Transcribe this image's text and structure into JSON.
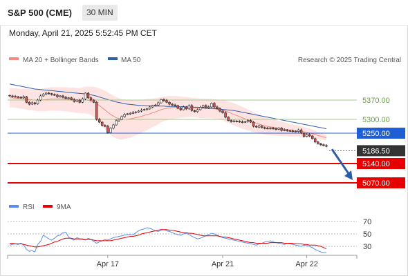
{
  "header": {
    "instrument": "S&P 500 (CME)",
    "timeframe": "30 MIN",
    "timestamp": "Monday, April 21, 2025 5:52:45 PM CET"
  },
  "legend": {
    "ma20_label": "MA 20 + Bollinger Bands",
    "ma50_label": "MA 50",
    "copyright": "Research © 2025 Trading Central",
    "rsi_label": "RSI",
    "rsi_ma_label": "9MA"
  },
  "colors": {
    "ma20": "#f28b82",
    "bollinger_fill": "#fde3e1",
    "ma50": "#2d5ea8",
    "candle_up": "#ffffff",
    "candle_down": "#d9534f",
    "candle_border": "#222222",
    "resistance": "#a6c98a",
    "pivot": "#1f5fd6",
    "support": "#e60000",
    "price_tag": "#333333",
    "arrow": "#2a5da8",
    "rsi": "#5b8def",
    "rsi_ma": "#e60000"
  },
  "chart_data": {
    "type": "candlestick",
    "ylim": [
      5020,
      5470
    ],
    "x_labels": [
      "Apr 17",
      "Apr 21",
      "Apr 22"
    ],
    "levels": [
      {
        "value": 5370.0,
        "label": "5370.00",
        "kind": "resistance"
      },
      {
        "value": 5300.0,
        "label": "5300.00",
        "kind": "resistance"
      },
      {
        "value": 5250.0,
        "label": "5250.00",
        "kind": "pivot"
      },
      {
        "value": 5140.0,
        "label": "5140.00",
        "kind": "support"
      },
      {
        "value": 5070.0,
        "label": "5070.00",
        "kind": "support"
      }
    ],
    "last_price": {
      "value": 5186.5,
      "label": "5186.50"
    },
    "arrow": {
      "from": 5192,
      "to": 5080
    },
    "price_series": [
      5385,
      5383,
      5382,
      5380,
      5378,
      5382,
      5362,
      5355,
      5360,
      5356,
      5370,
      5385,
      5392,
      5395,
      5393,
      5390,
      5388,
      5382,
      5385,
      5380,
      5376,
      5378,
      5372,
      5365,
      5370,
      5362,
      5374,
      5395,
      5378,
      5370,
      5362,
      5300,
      5290,
      5278,
      5275,
      5252,
      5268,
      5280,
      5295,
      5300,
      5310,
      5318,
      5320,
      5322,
      5325,
      5327,
      5330,
      5334,
      5336,
      5338,
      5345,
      5350,
      5352,
      5360,
      5372,
      5368,
      5362,
      5355,
      5352,
      5350,
      5340,
      5335,
      5345,
      5338,
      5350,
      5332,
      5328,
      5335,
      5344,
      5350,
      5342,
      5345,
      5358,
      5345,
      5340,
      5330,
      5324,
      5308,
      5296,
      5292,
      5294,
      5293,
      5291,
      5290,
      5292,
      5296,
      5290,
      5275,
      5272,
      5276,
      5270,
      5268,
      5267,
      5269,
      5266,
      5264,
      5268,
      5260,
      5262,
      5259,
      5258,
      5257,
      5256,
      5262,
      5250,
      5238,
      5245,
      5240,
      5230,
      5218,
      5212,
      5208,
      5205,
      5203
    ],
    "ma20_series": [
      5378,
      5378,
      5377,
      5376,
      5375,
      5374,
      5373,
      5372,
      5371,
      5370,
      5369,
      5370,
      5371,
      5372,
      5373,
      5374,
      5374,
      5374,
      5374,
      5373,
      5373,
      5372,
      5371,
      5370,
      5369,
      5368,
      5369,
      5370,
      5369,
      5367,
      5364,
      5358,
      5350,
      5342,
      5334,
      5326,
      5318,
      5312,
      5306,
      5302,
      5300,
      5300,
      5301,
      5302,
      5304,
      5306,
      5308,
      5311,
      5314,
      5317,
      5320,
      5324,
      5327,
      5331,
      5335,
      5338,
      5340,
      5342,
      5343,
      5344,
      5344,
      5344,
      5344,
      5344,
      5344,
      5343,
      5342,
      5341,
      5340,
      5340,
      5339,
      5339,
      5339,
      5338,
      5337,
      5335,
      5333,
      5330,
      5326,
      5322,
      5318,
      5314,
      5310,
      5306,
      5302,
      5298,
      5294,
      5290,
      5286,
      5283,
      5280,
      5277,
      5275,
      5273,
      5271,
      5269,
      5268,
      5266,
      5264,
      5263,
      5261,
      5260,
      5259,
      5258,
      5257,
      5255,
      5253,
      5251,
      5248,
      5245,
      5242,
      5239,
      5236,
      5233
    ],
    "ma50_series": [
      5428,
      5426,
      5424,
      5422,
      5420,
      5418,
      5416,
      5414,
      5412,
      5410,
      5409,
      5408,
      5407,
      5406,
      5405,
      5404,
      5403,
      5402,
      5401,
      5400,
      5399,
      5398,
      5397,
      5396,
      5395,
      5394,
      5393,
      5392,
      5391,
      5389,
      5387,
      5384,
      5381,
      5378,
      5375,
      5372,
      5369,
      5366,
      5363,
      5361,
      5359,
      5357,
      5355,
      5354,
      5353,
      5352,
      5351,
      5350,
      5350,
      5349,
      5349,
      5349,
      5348,
      5348,
      5348,
      5348,
      5347,
      5347,
      5347,
      5347,
      5346,
      5346,
      5346,
      5345,
      5345,
      5345,
      5344,
      5344,
      5343,
      5343,
      5342,
      5341,
      5340,
      5339,
      5338,
      5337,
      5336,
      5335,
      5334,
      5333,
      5332,
      5330,
      5328,
      5326,
      5324,
      5322,
      5320,
      5318,
      5316,
      5314,
      5312,
      5310,
      5308,
      5306,
      5304,
      5302,
      5300,
      5298,
      5296,
      5294,
      5292,
      5290,
      5288,
      5286,
      5284,
      5282,
      5280,
      5278,
      5276,
      5274,
      5272,
      5270,
      5268,
      5266
    ],
    "bollinger_width": [
      35,
      35,
      35,
      36,
      36,
      37,
      37,
      38,
      38,
      39,
      40,
      40,
      41,
      42,
      42,
      43,
      43,
      43,
      43,
      44,
      44,
      44,
      44,
      45,
      45,
      46,
      47,
      48,
      49,
      51,
      54,
      58,
      62,
      66,
      70,
      72,
      74,
      75,
      75,
      74,
      73,
      72,
      70,
      68,
      66,
      64,
      62,
      60,
      58,
      56,
      54,
      52,
      50,
      48,
      46,
      45,
      44,
      43,
      42,
      41,
      40,
      39,
      38,
      37,
      36,
      35,
      35,
      35,
      35,
      35,
      35,
      35,
      35,
      35,
      35,
      36,
      37,
      38,
      39,
      40,
      40,
      40,
      40,
      40,
      39,
      38,
      37,
      36,
      35,
      34,
      33,
      32,
      31,
      30,
      29,
      28,
      27,
      26,
      25,
      24,
      23,
      22,
      21,
      20,
      19,
      18,
      17,
      16,
      15,
      14,
      13,
      12,
      11,
      10
    ],
    "rsi": {
      "ylim": [
        20,
        80
      ],
      "ticks": [
        70,
        50,
        30
      ],
      "rsi_series": [
        32,
        33,
        34,
        33,
        35,
        32,
        25,
        22,
        23,
        21,
        33,
        38,
        48,
        45,
        42,
        40,
        43,
        47,
        48,
        52,
        53,
        45,
        42,
        40,
        44,
        42,
        41,
        40,
        43,
        41,
        38,
        35,
        37,
        39,
        41,
        40,
        42,
        44,
        45,
        46,
        47,
        48,
        49,
        49,
        48,
        52,
        55,
        57,
        58,
        60,
        59,
        57,
        55,
        54,
        56,
        57,
        55,
        54,
        52,
        50,
        49,
        48,
        50,
        51,
        49,
        46,
        44,
        42,
        43,
        45,
        47,
        49,
        51,
        50,
        48,
        46,
        44,
        43,
        42,
        41,
        40,
        39,
        38,
        37,
        36,
        35,
        34,
        33,
        32,
        34,
        35,
        37,
        38,
        39,
        37,
        36,
        35,
        34,
        33,
        35,
        34,
        33,
        32,
        31,
        30,
        32,
        31,
        30,
        28,
        25,
        23,
        21,
        20,
        20
      ],
      "ma_series": [
        35,
        35,
        34,
        34,
        34,
        33,
        32,
        31,
        30,
        29,
        29,
        30,
        31,
        32,
        33,
        35,
        37,
        38,
        40,
        42,
        43,
        43,
        43,
        42,
        42,
        42,
        42,
        41,
        41,
        41,
        40,
        39,
        39,
        39,
        39,
        39,
        39,
        40,
        41,
        42,
        43,
        44,
        45,
        46,
        46,
        47,
        48,
        50,
        51,
        52,
        53,
        54,
        55,
        56,
        57,
        57,
        57,
        56,
        56,
        55,
        54,
        53,
        52,
        52,
        51,
        51,
        50,
        49,
        48,
        47,
        47,
        47,
        47,
        47,
        47,
        46,
        45,
        45,
        44,
        43,
        42,
        41,
        40,
        39,
        38,
        37,
        36,
        36,
        35,
        35,
        35,
        35,
        35,
        36,
        36,
        36,
        36,
        36,
        35,
        35,
        35,
        35,
        34,
        34,
        34,
        33,
        33,
        32,
        32,
        32,
        31,
        30,
        28,
        26
      ]
    }
  }
}
